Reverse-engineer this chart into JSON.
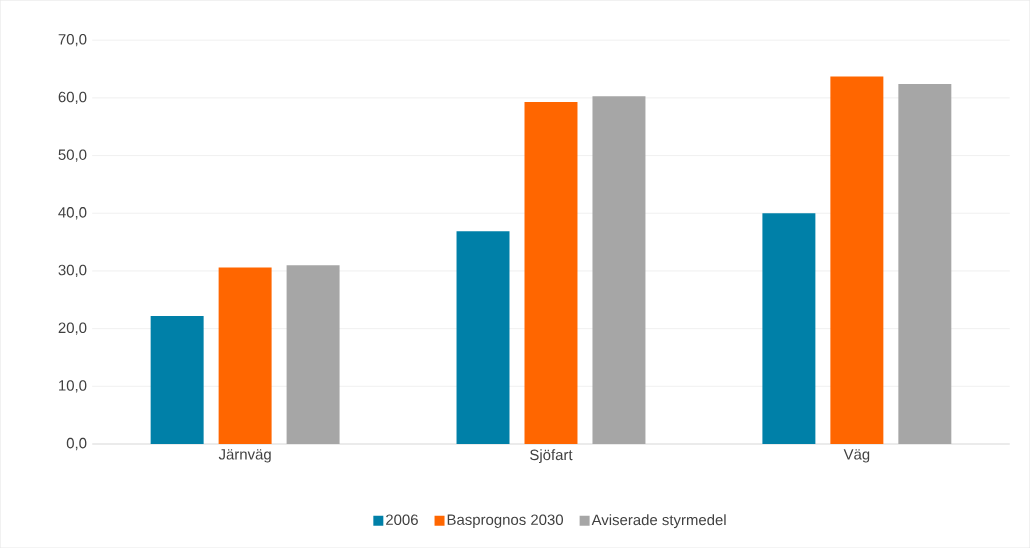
{
  "chart_data": {
    "type": "bar",
    "categories": [
      "Järnväg",
      "Sjöfart",
      "Väg"
    ],
    "series": [
      {
        "name": "2006",
        "color": "#0080a8",
        "values": [
          22.2,
          36.9,
          40.0
        ]
      },
      {
        "name": "Basprognos 2030",
        "color": "#ff6600",
        "values": [
          30.6,
          59.3,
          63.7
        ]
      },
      {
        "name": "Aviserade styrmedel",
        "color": "#a6a6a6",
        "values": [
          31.0,
          60.3,
          62.4
        ]
      }
    ],
    "ylim": [
      0,
      70
    ],
    "yticks": [
      {
        "value": 0,
        "label": "0,0"
      },
      {
        "value": 10,
        "label": "10,0"
      },
      {
        "value": 20,
        "label": "20,0"
      },
      {
        "value": 30,
        "label": "30,0"
      },
      {
        "value": 40,
        "label": "40,0"
      },
      {
        "value": 50,
        "label": "50,0"
      },
      {
        "value": 60,
        "label": "60,0"
      },
      {
        "value": 70,
        "label": "70,0"
      }
    ],
    "grid": "y",
    "legend": "bottom"
  }
}
